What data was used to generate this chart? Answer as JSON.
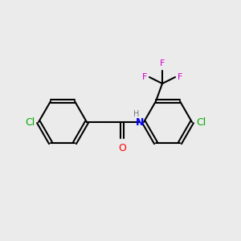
{
  "background_color": "#ebebeb",
  "bond_color": "#000000",
  "colors": {
    "Cl": "#00aa00",
    "O": "#ff0000",
    "N": "#0000ff",
    "F": "#cc00cc",
    "H": "#777777"
  },
  "figsize": [
    3.0,
    3.0
  ],
  "dpi": 100
}
